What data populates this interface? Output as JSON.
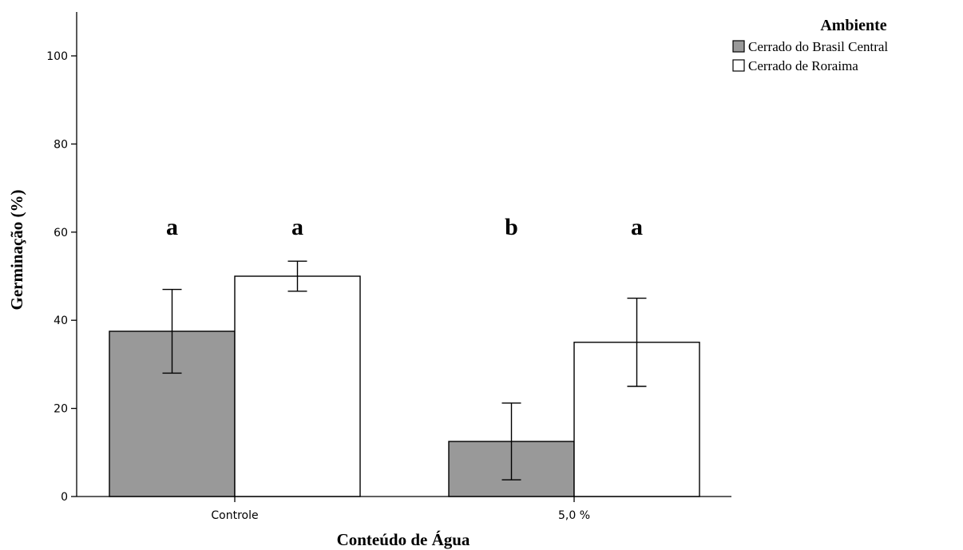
{
  "chart_data": {
    "type": "bar",
    "categories": [
      "Controle",
      "5,0 %"
    ],
    "series": [
      {
        "name": "Cerrado do Brasil Central",
        "color": "#999999",
        "values": [
          37.5,
          12.5
        ],
        "error_low": [
          28.0,
          3.8
        ],
        "error_high": [
          47.0,
          21.2
        ],
        "letters": [
          "a",
          "b"
        ]
      },
      {
        "name": "Cerrado de Roraima",
        "color": "#ffffff",
        "values": [
          50.0,
          35.0
        ],
        "error_low": [
          46.6,
          25.0
        ],
        "error_high": [
          53.4,
          45.0
        ],
        "letters": [
          "a",
          "a"
        ]
      }
    ],
    "xlabel": "Conteúdo de Água",
    "ylabel": "Germinação (%)",
    "yticks": [
      "0",
      "20",
      "40",
      "60",
      "80",
      "100"
    ],
    "ylim": [
      0,
      110
    ],
    "legend_title": "Ambiente",
    "legend_position": "top-right",
    "grid": false
  }
}
